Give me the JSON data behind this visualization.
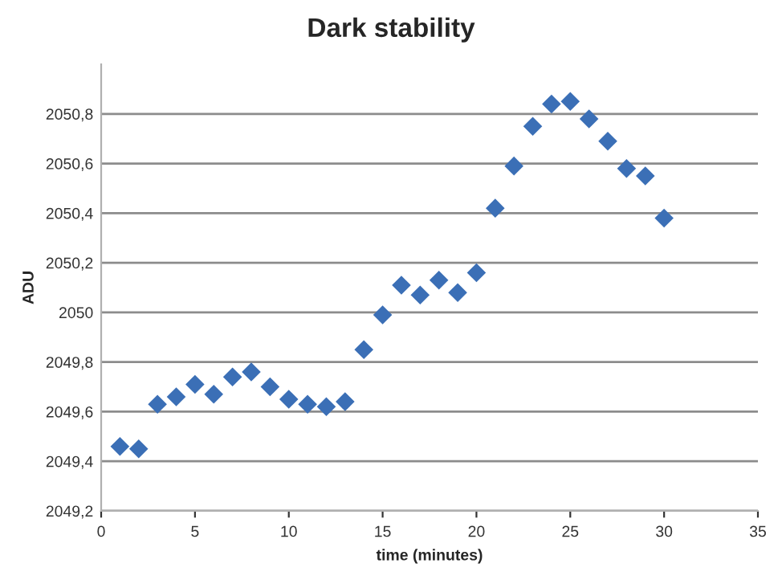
{
  "chart_data": {
    "type": "scatter",
    "title": "Dark stability",
    "xlabel": "time (minutes)",
    "ylabel": "ADU",
    "x": [
      1,
      2,
      3,
      4,
      5,
      6,
      7,
      8,
      9,
      10,
      11,
      12,
      13,
      14,
      15,
      16,
      17,
      18,
      19,
      20,
      21,
      22,
      23,
      24,
      25,
      26,
      27,
      28,
      29,
      30
    ],
    "series": [
      {
        "color": "#3b6fb6",
        "values": [
          2049.46,
          2049.45,
          2049.63,
          2049.66,
          2049.71,
          2049.67,
          2049.74,
          2049.76,
          2049.7,
          2049.65,
          2049.63,
          2049.62,
          2049.64,
          2049.85,
          2049.99,
          2050.11,
          2050.07,
          2050.13,
          2050.08,
          2050.16,
          2050.42,
          2050.59,
          2050.75,
          2050.84,
          2050.85,
          2050.78,
          2050.69,
          2050.58,
          2050.55,
          2050.38
        ]
      }
    ],
    "marker": "diamond",
    "grid": "y",
    "xlim": [
      0,
      35
    ],
    "xticks": [
      0,
      5,
      10,
      15,
      20,
      25,
      30,
      35
    ],
    "ylim": [
      2049.2,
      2051
    ],
    "yticks": [
      {
        "value": 2049.2,
        "label": "2049,2"
      },
      {
        "value": 2049.4,
        "label": "2049,4"
      },
      {
        "value": 2049.6,
        "label": "2049,6"
      },
      {
        "value": 2049.8,
        "label": "2049,8"
      },
      2050,
      {
        "value": 2050.2,
        "label": "2050,2"
      },
      {
        "value": 2050.4,
        "label": "2050,4"
      },
      {
        "value": 2050.6,
        "label": "2050,6"
      },
      {
        "value": 2050.8,
        "label": "2050,8"
      }
    ]
  }
}
